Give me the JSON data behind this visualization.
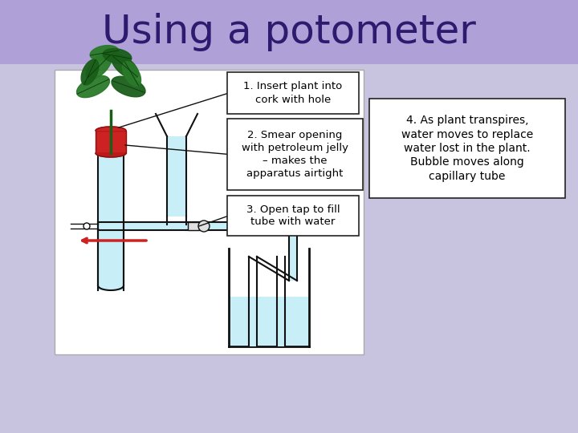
{
  "title": "Using a potometer",
  "title_color": "#2e1a6e",
  "title_fontsize": 36,
  "header_bg": "#b0a0d8",
  "main_bg": "#c8c4e0",
  "diagram_bg": "#e8e6f2",
  "box1_text": "1. Insert plant into\ncork with hole",
  "box2_text": "2. Smear opening\nwith petroleum jelly\n– makes the\napparatus airtight",
  "box3_text": "3. Open tap to fill\ntube with water",
  "box4_text": "4. As plant transpires,\nwater moves to replace\nwater lost in the plant.\nBubble moves along\ncapillary tube",
  "water_color": "#c8eff8",
  "cork_color": "#cc2222",
  "arrow_color": "#cc2222",
  "box_text_color": "#000000",
  "box_bg": "#ffffff",
  "line_color": "#111111",
  "stem_color": "#1a5e1a"
}
